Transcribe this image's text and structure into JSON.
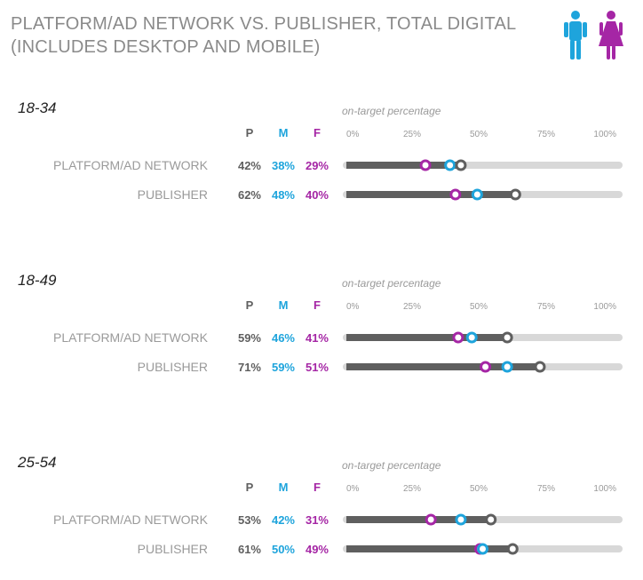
{
  "title": {
    "line1": "PLATFORM/AD NETWORK VS. PUBLISHER, TOTAL DIGITAL",
    "line2": "(INCLUDES DESKTOP AND MOBILE)"
  },
  "icons": {
    "male": "male-person-icon",
    "female": "female-person-icon"
  },
  "colors": {
    "persons": "#5f5f5f",
    "male": "#1ea4dc",
    "female": "#a526a5",
    "track": "#d8d8d8",
    "label": "#9a9a9a",
    "title": "#8a8a8a"
  },
  "chart_data": {
    "type": "dot-bar",
    "title": "PLATFORM/AD NETWORK VS. PUBLISHER, TOTAL DIGITAL (INCLUDES DESKTOP AND MOBILE)",
    "axis_caption": "on-target percentage",
    "xlim": [
      0,
      100
    ],
    "ticks": [
      "0%",
      "25%",
      "50%",
      "75%",
      "100%"
    ],
    "column_headers": {
      "p": "P",
      "m": "M",
      "f": "F"
    },
    "series_names": [
      "P",
      "M",
      "F"
    ],
    "groups": [
      {
        "age": "18-34",
        "rows": [
          {
            "label": "PLATFORM/AD NETWORK",
            "p": 42,
            "m": 38,
            "f": 29
          },
          {
            "label": "PUBLISHER",
            "p": 62,
            "m": 48,
            "f": 40
          }
        ]
      },
      {
        "age": "18-49",
        "rows": [
          {
            "label": "PLATFORM/AD NETWORK",
            "p": 59,
            "m": 46,
            "f": 41
          },
          {
            "label": "PUBLISHER",
            "p": 71,
            "m": 59,
            "f": 51
          }
        ]
      },
      {
        "age": "25-54",
        "rows": [
          {
            "label": "PLATFORM/AD NETWORK",
            "p": 53,
            "m": 42,
            "f": 31
          },
          {
            "label": "PUBLISHER",
            "p": 61,
            "m": 50,
            "f": 49
          }
        ]
      }
    ]
  }
}
